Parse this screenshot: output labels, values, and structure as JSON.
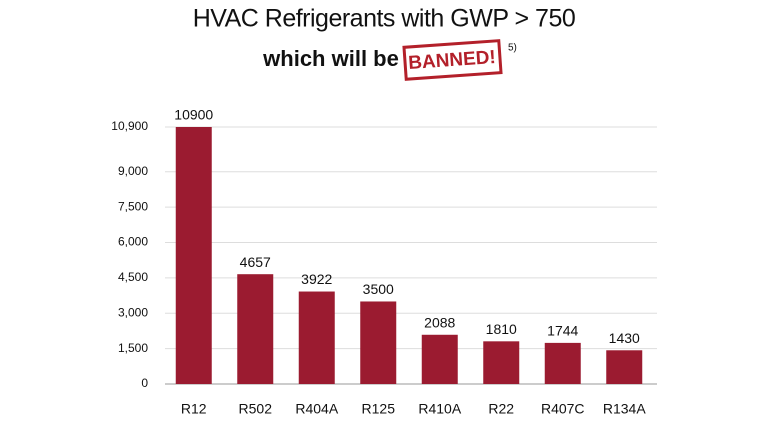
{
  "chart_data": {
    "type": "bar",
    "title": "HVAC Refrigerants with GWP > 750",
    "subtitle": "which will be",
    "stamp": "BANNED!",
    "footnote": "5)",
    "categories": [
      "R12",
      "R502",
      "R404A",
      "R125",
      "R410A",
      "R22",
      "R407C",
      "R134A"
    ],
    "values": [
      10900,
      4657,
      3922,
      3500,
      2088,
      1810,
      1744,
      1430
    ],
    "color": "#9b1b30",
    "ylim": [
      0,
      10900
    ],
    "yticks": [
      0,
      {
        "value": 1500,
        "label": "1,500"
      },
      {
        "value": 3000,
        "label": "3,000"
      },
      {
        "value": 4500,
        "label": "4,500"
      },
      {
        "value": 6000,
        "label": "6,000"
      },
      {
        "value": 7500,
        "label": "7,500"
      },
      {
        "value": 9000,
        "label": "9,000"
      },
      {
        "value": 10900,
        "label": "10,900"
      }
    ],
    "grid": true
  }
}
